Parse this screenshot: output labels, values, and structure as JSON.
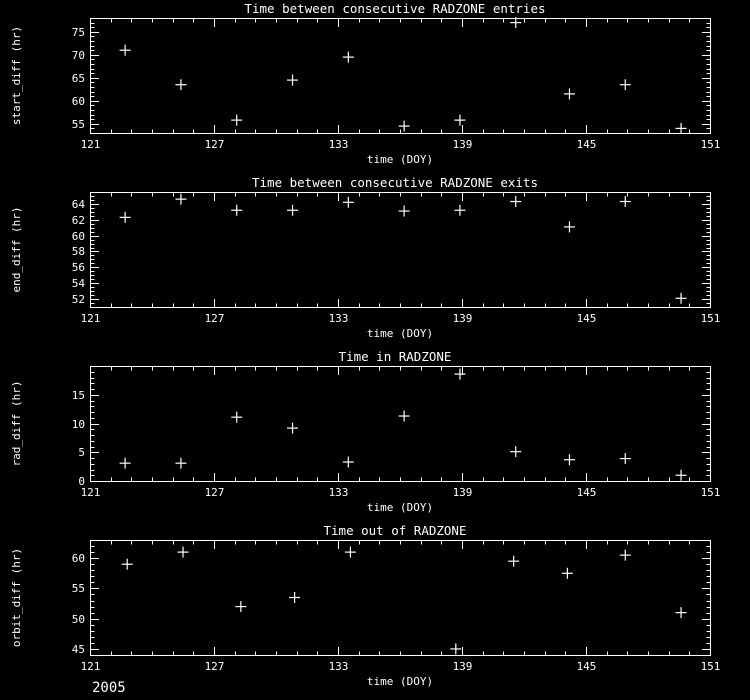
{
  "colors": {
    "background": "#000000",
    "foreground": "#ffffff"
  },
  "footer": {
    "year": "2005"
  },
  "chart_data": [
    {
      "type": "scatter",
      "title": "Time between consecutive RADZONE entries",
      "xlabel": "time (DOY)",
      "ylabel": "start_diff (hr)",
      "xlim": [
        121,
        151
      ],
      "xticks": [
        121,
        127,
        133,
        139,
        145,
        151
      ],
      "x_minor": 1,
      "ylim": [
        53,
        78
      ],
      "yticks": [
        55,
        60,
        65,
        70,
        75
      ],
      "y_minor": 1,
      "marker": "+",
      "grid": false,
      "points": [
        [
          122.7,
          71
        ],
        [
          125.4,
          63.5
        ],
        [
          128.1,
          55.8
        ],
        [
          130.8,
          64.5
        ],
        [
          133.5,
          69.5
        ],
        [
          136.2,
          54.5
        ],
        [
          138.9,
          55.8
        ],
        [
          141.6,
          77
        ],
        [
          144.2,
          61.5
        ],
        [
          146.9,
          63.5
        ],
        [
          149.6,
          54
        ]
      ]
    },
    {
      "type": "scatter",
      "title": "Time between consecutive RADZONE exits",
      "xlabel": "time (DOY)",
      "ylabel": "end_diff (hr)",
      "xlim": [
        121,
        151
      ],
      "xticks": [
        121,
        127,
        133,
        139,
        145,
        151
      ],
      "x_minor": 1,
      "ylim": [
        51,
        65.5
      ],
      "yticks": [
        52,
        54,
        56,
        58,
        60,
        62,
        64
      ],
      "y_minor": 0.5,
      "marker": "+",
      "grid": false,
      "points": [
        [
          122.7,
          62.3
        ],
        [
          125.4,
          64.6
        ],
        [
          128.1,
          63.2
        ],
        [
          130.8,
          63.2
        ],
        [
          133.5,
          64.2
        ],
        [
          136.2,
          63.1
        ],
        [
          138.9,
          63.2
        ],
        [
          141.6,
          64.3
        ],
        [
          144.2,
          61.1
        ],
        [
          146.9,
          64.3
        ],
        [
          149.6,
          52.1
        ]
      ]
    },
    {
      "type": "scatter",
      "title": "Time in RADZONE",
      "xlabel": "time (DOY)",
      "ylabel": "rad_diff (hr)",
      "xlim": [
        121,
        151
      ],
      "xticks": [
        121,
        127,
        133,
        139,
        145,
        151
      ],
      "x_minor": 1,
      "ylim": [
        0,
        20
      ],
      "yticks": [
        0,
        5,
        10,
        15
      ],
      "y_minor": 1,
      "marker": "+",
      "grid": false,
      "points": [
        [
          122.7,
          3.1
        ],
        [
          125.4,
          3.1
        ],
        [
          128.1,
          11.1
        ],
        [
          130.8,
          9.2
        ],
        [
          133.5,
          3.3
        ],
        [
          136.2,
          11.3
        ],
        [
          138.9,
          18.6
        ],
        [
          141.6,
          5.1
        ],
        [
          144.2,
          3.7
        ],
        [
          146.9,
          3.9
        ],
        [
          149.6,
          1.0
        ]
      ]
    },
    {
      "type": "scatter",
      "title": "Time out of RADZONE",
      "xlabel": "time (DOY)",
      "ylabel": "orbit_diff (hr)",
      "xlim": [
        121,
        151
      ],
      "xticks": [
        121,
        127,
        133,
        139,
        145,
        151
      ],
      "x_minor": 1,
      "ylim": [
        44,
        63
      ],
      "yticks": [
        45,
        50,
        55,
        60
      ],
      "y_minor": 1,
      "marker": "+",
      "grid": false,
      "points": [
        [
          122.8,
          59
        ],
        [
          125.5,
          61
        ],
        [
          128.3,
          52
        ],
        [
          130.9,
          53.5
        ],
        [
          133.6,
          61
        ],
        [
          138.7,
          45
        ],
        [
          141.5,
          59.5
        ],
        [
          144.1,
          57.5
        ],
        [
          146.9,
          60.5
        ],
        [
          149.6,
          51
        ]
      ]
    }
  ]
}
